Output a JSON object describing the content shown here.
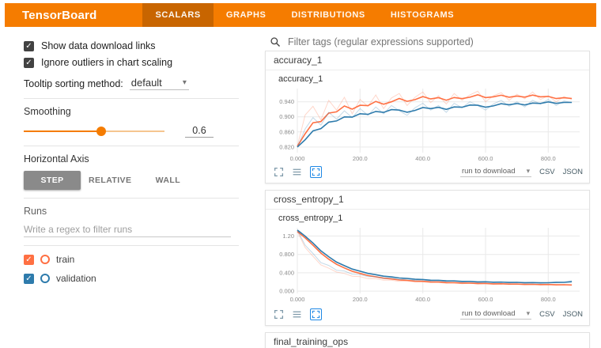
{
  "header": {
    "logo": "TensorBoard",
    "tabs": [
      {
        "label": "SCALARS",
        "active": true
      },
      {
        "label": "GRAPHS",
        "active": false
      },
      {
        "label": "DISTRIBUTIONS",
        "active": false
      },
      {
        "label": "HISTOGRAMS",
        "active": false
      }
    ],
    "accent_color": "#f57c00"
  },
  "sidebar": {
    "checkboxes": [
      {
        "label": "Show data download links",
        "checked": true
      },
      {
        "label": "Ignore outliers in chart scaling",
        "checked": true
      }
    ],
    "tooltip_sorting": {
      "label": "Tooltip sorting method:",
      "value": "default"
    },
    "smoothing": {
      "label": "Smoothing",
      "value": "0.6",
      "percent": 55
    },
    "horizontal_axis": {
      "label": "Horizontal Axis",
      "options": [
        {
          "label": "STEP",
          "active": true
        },
        {
          "label": "RELATIVE",
          "active": false
        },
        {
          "label": "WALL",
          "active": false
        }
      ]
    },
    "runs": {
      "label": "Runs",
      "filter_placeholder": "Write a regex to filter runs",
      "items": [
        {
          "label": "train",
          "color": "#ff7043",
          "checked": true
        },
        {
          "label": "validation",
          "color": "#2e7bac",
          "checked": true
        }
      ]
    }
  },
  "main": {
    "filter_placeholder": "Filter tags (regular expressions supported)",
    "sections": [
      {
        "title": "accuracy_1"
      },
      {
        "title": "cross_entropy_1"
      },
      {
        "title": "final_training_ops"
      }
    ],
    "card_footer": {
      "download_select": "run to download",
      "links": [
        "CSV",
        "JSON"
      ]
    }
  },
  "chart_data": [
    {
      "type": "line",
      "title": "accuracy_1",
      "smoothing": 0.6,
      "x_domain": [
        0,
        900
      ],
      "y_domain": [
        0.805,
        0.975
      ],
      "x_ticks": [
        {
          "v": 0,
          "label": "0.000"
        },
        {
          "v": 200,
          "label": "200.0"
        },
        {
          "v": 400,
          "label": "400.0"
        },
        {
          "v": 600,
          "label": "600.0"
        },
        {
          "v": 800,
          "label": "800.0"
        }
      ],
      "y_ticks": [
        {
          "v": 0.82,
          "label": "0.820"
        },
        {
          "v": 0.86,
          "label": "0.860"
        },
        {
          "v": 0.9,
          "label": "0.900"
        },
        {
          "v": 0.94,
          "label": "0.940"
        }
      ],
      "x": [
        0,
        25,
        50,
        75,
        100,
        125,
        150,
        175,
        200,
        225,
        250,
        275,
        300,
        325,
        350,
        375,
        400,
        425,
        450,
        475,
        500,
        525,
        550,
        575,
        600,
        625,
        650,
        675,
        700,
        725,
        750,
        775,
        800,
        825,
        850,
        875
      ],
      "series": [
        {
          "name": "train",
          "color": "#ff7043",
          "values": [
            0.822,
            0.905,
            0.928,
            0.892,
            0.944,
            0.918,
            0.952,
            0.908,
            0.946,
            0.928,
            0.958,
            0.922,
            0.95,
            0.962,
            0.93,
            0.952,
            0.966,
            0.938,
            0.956,
            0.934,
            0.962,
            0.944,
            0.958,
            0.968,
            0.94,
            0.956,
            0.964,
            0.944,
            0.96,
            0.948,
            0.966,
            0.946,
            0.956,
            0.94,
            0.954,
            0.946
          ]
        },
        {
          "name": "validation",
          "color": "#2e7bac",
          "values": [
            0.82,
            0.868,
            0.898,
            0.878,
            0.912,
            0.894,
            0.916,
            0.898,
            0.922,
            0.904,
            0.926,
            0.908,
            0.93,
            0.916,
            0.904,
            0.924,
            0.936,
            0.918,
            0.93,
            0.912,
            0.936,
            0.924,
            0.94,
            0.93,
            0.918,
            0.934,
            0.944,
            0.928,
            0.94,
            0.926,
            0.944,
            0.934,
            0.946,
            0.93,
            0.942,
            0.938
          ]
        }
      ]
    },
    {
      "type": "line",
      "title": "cross_entropy_1",
      "smoothing": 0.6,
      "x_domain": [
        0,
        900
      ],
      "y_domain": [
        -0.05,
        1.38
      ],
      "x_ticks": [
        {
          "v": 0,
          "label": "0.000"
        },
        {
          "v": 200,
          "label": "200.0"
        },
        {
          "v": 400,
          "label": "400.0"
        },
        {
          "v": 600,
          "label": "600.0"
        },
        {
          "v": 800,
          "label": "800.0"
        }
      ],
      "y_ticks": [
        {
          "v": 0.0,
          "label": "0.000"
        },
        {
          "v": 0.4,
          "label": "0.400"
        },
        {
          "v": 0.8,
          "label": "0.800"
        },
        {
          "v": 1.2,
          "label": "1.20"
        }
      ],
      "x": [
        0,
        25,
        50,
        75,
        100,
        125,
        150,
        175,
        200,
        225,
        250,
        275,
        300,
        325,
        350,
        375,
        400,
        425,
        450,
        475,
        500,
        525,
        550,
        575,
        600,
        625,
        650,
        675,
        700,
        725,
        750,
        775,
        800,
        825,
        850,
        875
      ],
      "series": [
        {
          "name": "train",
          "color": "#ff7043",
          "values": [
            1.3,
            0.95,
            0.76,
            0.57,
            0.5,
            0.415,
            0.385,
            0.325,
            0.315,
            0.272,
            0.27,
            0.238,
            0.24,
            0.214,
            0.22,
            0.196,
            0.204,
            0.182,
            0.192,
            0.171,
            0.182,
            0.162,
            0.174,
            0.154,
            0.167,
            0.148,
            0.161,
            0.142,
            0.156,
            0.137,
            0.151,
            0.133,
            0.147,
            0.129,
            0.143,
            0.126
          ]
        },
        {
          "name": "validation",
          "color": "#2e7bac",
          "values": [
            1.33,
            1.0,
            0.82,
            0.62,
            0.56,
            0.455,
            0.44,
            0.37,
            0.362,
            0.316,
            0.316,
            0.278,
            0.284,
            0.252,
            0.262,
            0.232,
            0.244,
            0.217,
            0.231,
            0.205,
            0.22,
            0.196,
            0.212,
            0.188,
            0.205,
            0.182,
            0.2,
            0.177,
            0.195,
            0.173,
            0.191,
            0.17,
            0.188,
            0.2,
            0.195,
            0.225
          ]
        }
      ]
    }
  ]
}
